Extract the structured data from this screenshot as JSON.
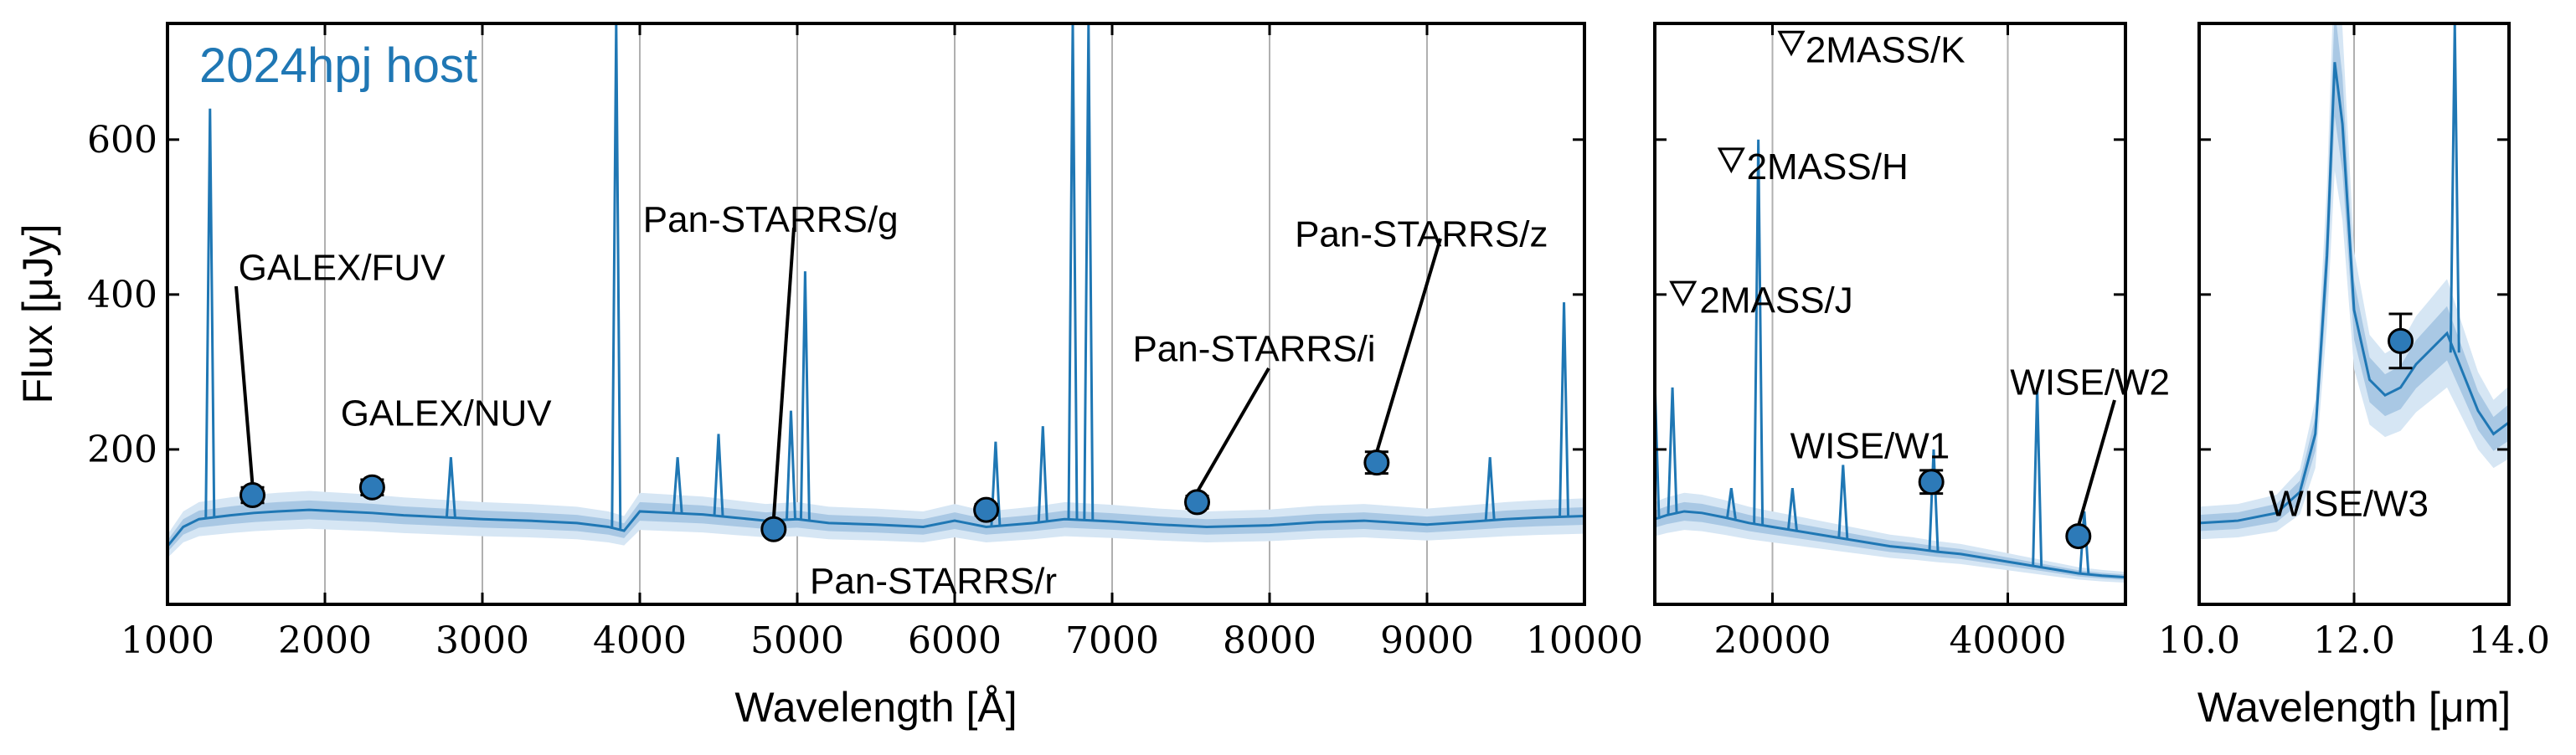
{
  "colors": {
    "spectrum": "#1f77b4",
    "band_inner": "#a9c8e4",
    "band_outer": "#d6e6f4",
    "marker_fill": "#2d7ab8",
    "grid": "#b0b0b0",
    "frame": "#000000"
  },
  "chart_data": [
    {
      "type": "line",
      "panel": "optical",
      "title": "2024hpj host",
      "ylabel": "Flux [μJy]",
      "xlabel": "Wavelength [Å]",
      "xlim": [
        1000,
        10000
      ],
      "ylim": [
        0,
        750
      ],
      "xticks": [
        1000,
        2000,
        3000,
        4000,
        5000,
        6000,
        7000,
        8000,
        9000,
        10000
      ],
      "xtick_labels": [
        "1000",
        "2000",
        "3000",
        "4000",
        "5000",
        "6000",
        "7000",
        "8000",
        "9000",
        "10000"
      ],
      "yticks": [
        200,
        400,
        600
      ],
      "ytick_labels": [
        "200",
        "400",
        "600"
      ],
      "grid": "vertical",
      "series": [
        {
          "x": [
            1000,
            1100,
            1200,
            1280,
            1400,
            1550,
            1700,
            1900,
            2100,
            2300,
            2500,
            2800,
            3000,
            3300,
            3600,
            3800,
            3900,
            4000,
            4200,
            4400,
            4600,
            4800,
            5000,
            5200,
            5500,
            5800,
            6000,
            6200,
            6500,
            6700,
            7000,
            7300,
            7600,
            8000,
            8300,
            8600,
            9000,
            9300,
            9500,
            9700,
            10000
          ],
          "y": [
            75,
            100,
            110,
            112,
            115,
            118,
            120,
            122,
            120,
            118,
            115,
            112,
            110,
            108,
            105,
            100,
            95,
            120,
            118,
            116,
            112,
            108,
            110,
            105,
            103,
            100,
            108,
            100,
            105,
            110,
            107,
            103,
            100,
            102,
            106,
            108,
            103,
            107,
            110,
            112,
            114
          ]
        }
      ],
      "emission_lines": [
        {
          "x": 1270,
          "y": 640
        },
        {
          "x": 2800,
          "y": 190
        },
        {
          "x": 3850,
          "y": 750
        },
        {
          "x": 4240,
          "y": 190
        },
        {
          "x": 4500,
          "y": 220
        },
        {
          "x": 4960,
          "y": 250
        },
        {
          "x": 5050,
          "y": 430
        },
        {
          "x": 6260,
          "y": 210
        },
        {
          "x": 6560,
          "y": 230
        },
        {
          "x": 6750,
          "y": 750
        },
        {
          "x": 6850,
          "y": 750
        },
        {
          "x": 9400,
          "y": 190
        },
        {
          "x": 9870,
          "y": 390
        }
      ],
      "photometry": [
        {
          "label": "GALEX/FUV",
          "x": 1540,
          "y": 141,
          "yerr": 10
        },
        {
          "label": "GALEX/NUV",
          "x": 2300,
          "y": 151,
          "yerr": 10
        },
        {
          "label": "Pan-STARRS/g",
          "x": 4850,
          "y": 97,
          "yerr": 6
        },
        {
          "label": "Pan-STARRS/r",
          "x": 6200,
          "y": 122,
          "yerr": 7
        },
        {
          "label": "Pan-STARRS/i",
          "x": 7540,
          "y": 132,
          "yerr": 8
        },
        {
          "label": "Pan-STARRS/z",
          "x": 8680,
          "y": 183,
          "yerr": 14
        }
      ],
      "annotations": [
        {
          "text": "GALEX/FUV",
          "x": 1450,
          "y": 435,
          "pointer": true
        },
        {
          "text": "GALEX/NUV",
          "x": 2100,
          "y": 247,
          "pointer": false
        },
        {
          "text": "Pan-STARRS/g",
          "x": 4020,
          "y": 497,
          "pointer": true
        },
        {
          "text": "Pan-STARRS/r",
          "x": 5080,
          "y": 30,
          "pointer": false
        },
        {
          "text": "Pan-STARRS/i",
          "x": 7130,
          "y": 330,
          "pointer": true
        },
        {
          "text": "Pan-STARRS/z",
          "x": 8160,
          "y": 478,
          "pointer": true
        }
      ]
    },
    {
      "type": "line",
      "panel": "near-infrared",
      "xlim": [
        10000,
        50000
      ],
      "ylim": [
        0,
        750
      ],
      "xticks": [
        20000,
        40000
      ],
      "xtick_labels": [
        "20000",
        "40000"
      ],
      "grid": "vertical",
      "series": [
        {
          "x": [
            10000,
            11000,
            12500,
            14000,
            16000,
            18000,
            20000,
            22000,
            24000,
            26000,
            28000,
            30000,
            32000,
            34000,
            36000,
            38000,
            40000,
            42000,
            44000,
            46000,
            48000,
            50000
          ],
          "y": [
            110,
            115,
            120,
            118,
            112,
            105,
            100,
            95,
            90,
            85,
            80,
            75,
            72,
            68,
            65,
            60,
            55,
            50,
            45,
            40,
            37,
            35
          ]
        }
      ],
      "emission_lines": [
        {
          "x": 10000,
          "y": 290
        },
        {
          "x": 11500,
          "y": 280
        },
        {
          "x": 16500,
          "y": 150
        },
        {
          "x": 18800,
          "y": 600
        },
        {
          "x": 21700,
          "y": 150
        },
        {
          "x": 26000,
          "y": 180
        },
        {
          "x": 33700,
          "y": 200
        },
        {
          "x": 42500,
          "y": 280
        },
        {
          "x": 46500,
          "y": 120
        }
      ],
      "photometry": [
        {
          "label": "WISE/W1",
          "x": 33500,
          "y": 158,
          "yerr": 15
        },
        {
          "label": "WISE/W2",
          "x": 46000,
          "y": 88,
          "yerr": 6
        }
      ],
      "upper_limits": [
        {
          "label": "2MASS/J",
          "x": 12400,
          "y": 403
        },
        {
          "label": "2MASS/H",
          "x": 16500,
          "y": 575
        },
        {
          "label": "2MASS/K",
          "x": 21600,
          "y": 726
        }
      ],
      "annotations": [
        {
          "text": "2MASS/J",
          "x": 13800,
          "y": 393,
          "pointer": false
        },
        {
          "text": "2MASS/H",
          "x": 17800,
          "y": 565,
          "pointer": false
        },
        {
          "text": "2MASS/K",
          "x": 22800,
          "y": 716,
          "pointer": false
        },
        {
          "text": "WISE/W1",
          "x": 21500,
          "y": 205,
          "pointer": false
        },
        {
          "text": "WISE/W2",
          "x": 40200,
          "y": 287,
          "pointer": true
        }
      ]
    },
    {
      "type": "line",
      "panel": "mid-infrared",
      "xlabel": "Wavelength [μm]",
      "xlim": [
        10.0,
        14.0
      ],
      "ylim": [
        0,
        750
      ],
      "xticks": [
        10.0,
        12.0,
        14.0
      ],
      "xtick_labels": [
        "10.0",
        "12.0",
        "14.0"
      ],
      "grid": "vertical",
      "series": [
        {
          "x": [
            10.0,
            10.5,
            11.0,
            11.3,
            11.5,
            11.65,
            11.75,
            11.85,
            12.0,
            12.2,
            12.4,
            12.6,
            12.8,
            13.0,
            13.2,
            13.4,
            13.6,
            13.8,
            14.0
          ],
          "y": [
            105,
            108,
            118,
            145,
            220,
            450,
            700,
            620,
            380,
            290,
            270,
            280,
            310,
            330,
            350,
            300,
            250,
            220,
            235
          ]
        }
      ],
      "emission_lines": [
        {
          "x": 13.3,
          "y": 750
        }
      ],
      "photometry": [
        {
          "label": "WISE/W3",
          "x": 12.6,
          "y": 340,
          "yerr": 35
        }
      ],
      "annotations": [
        {
          "text": "WISE/W3",
          "x": 10.9,
          "y": 130,
          "pointer": false
        }
      ]
    }
  ]
}
